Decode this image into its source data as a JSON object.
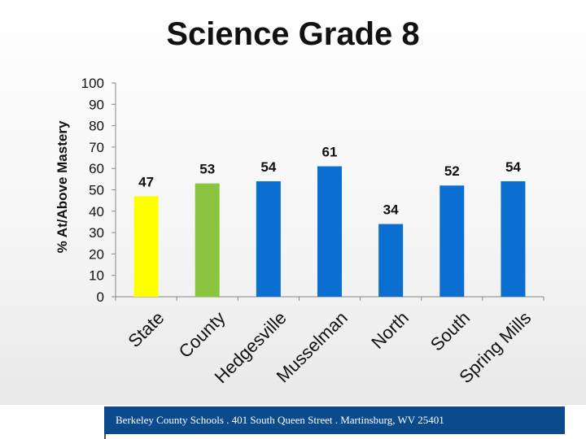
{
  "chart_data": {
    "type": "bar",
    "title": "Science Grade 8",
    "ylabel": "% At/Above Mastery",
    "xlabel": "",
    "ylim": [
      0,
      100
    ],
    "yticks": [
      0,
      10,
      20,
      30,
      40,
      50,
      60,
      70,
      80,
      90,
      100
    ],
    "categories": [
      "State",
      "County",
      "Hedgesville",
      "Musselman",
      "North",
      "South",
      "Spring Mills"
    ],
    "values": [
      47,
      53,
      54,
      61,
      34,
      52,
      54
    ],
    "colors": [
      "#ffff00",
      "#8bc53f",
      "#0a6fd1",
      "#0a6fd1",
      "#0a6fd1",
      "#0a6fd1",
      "#0a6fd1"
    ],
    "grid": false,
    "legend": "none"
  },
  "footer": {
    "text": "Berkeley County Schools . 401 South Queen Street . Martinsburg, WV  25401"
  }
}
